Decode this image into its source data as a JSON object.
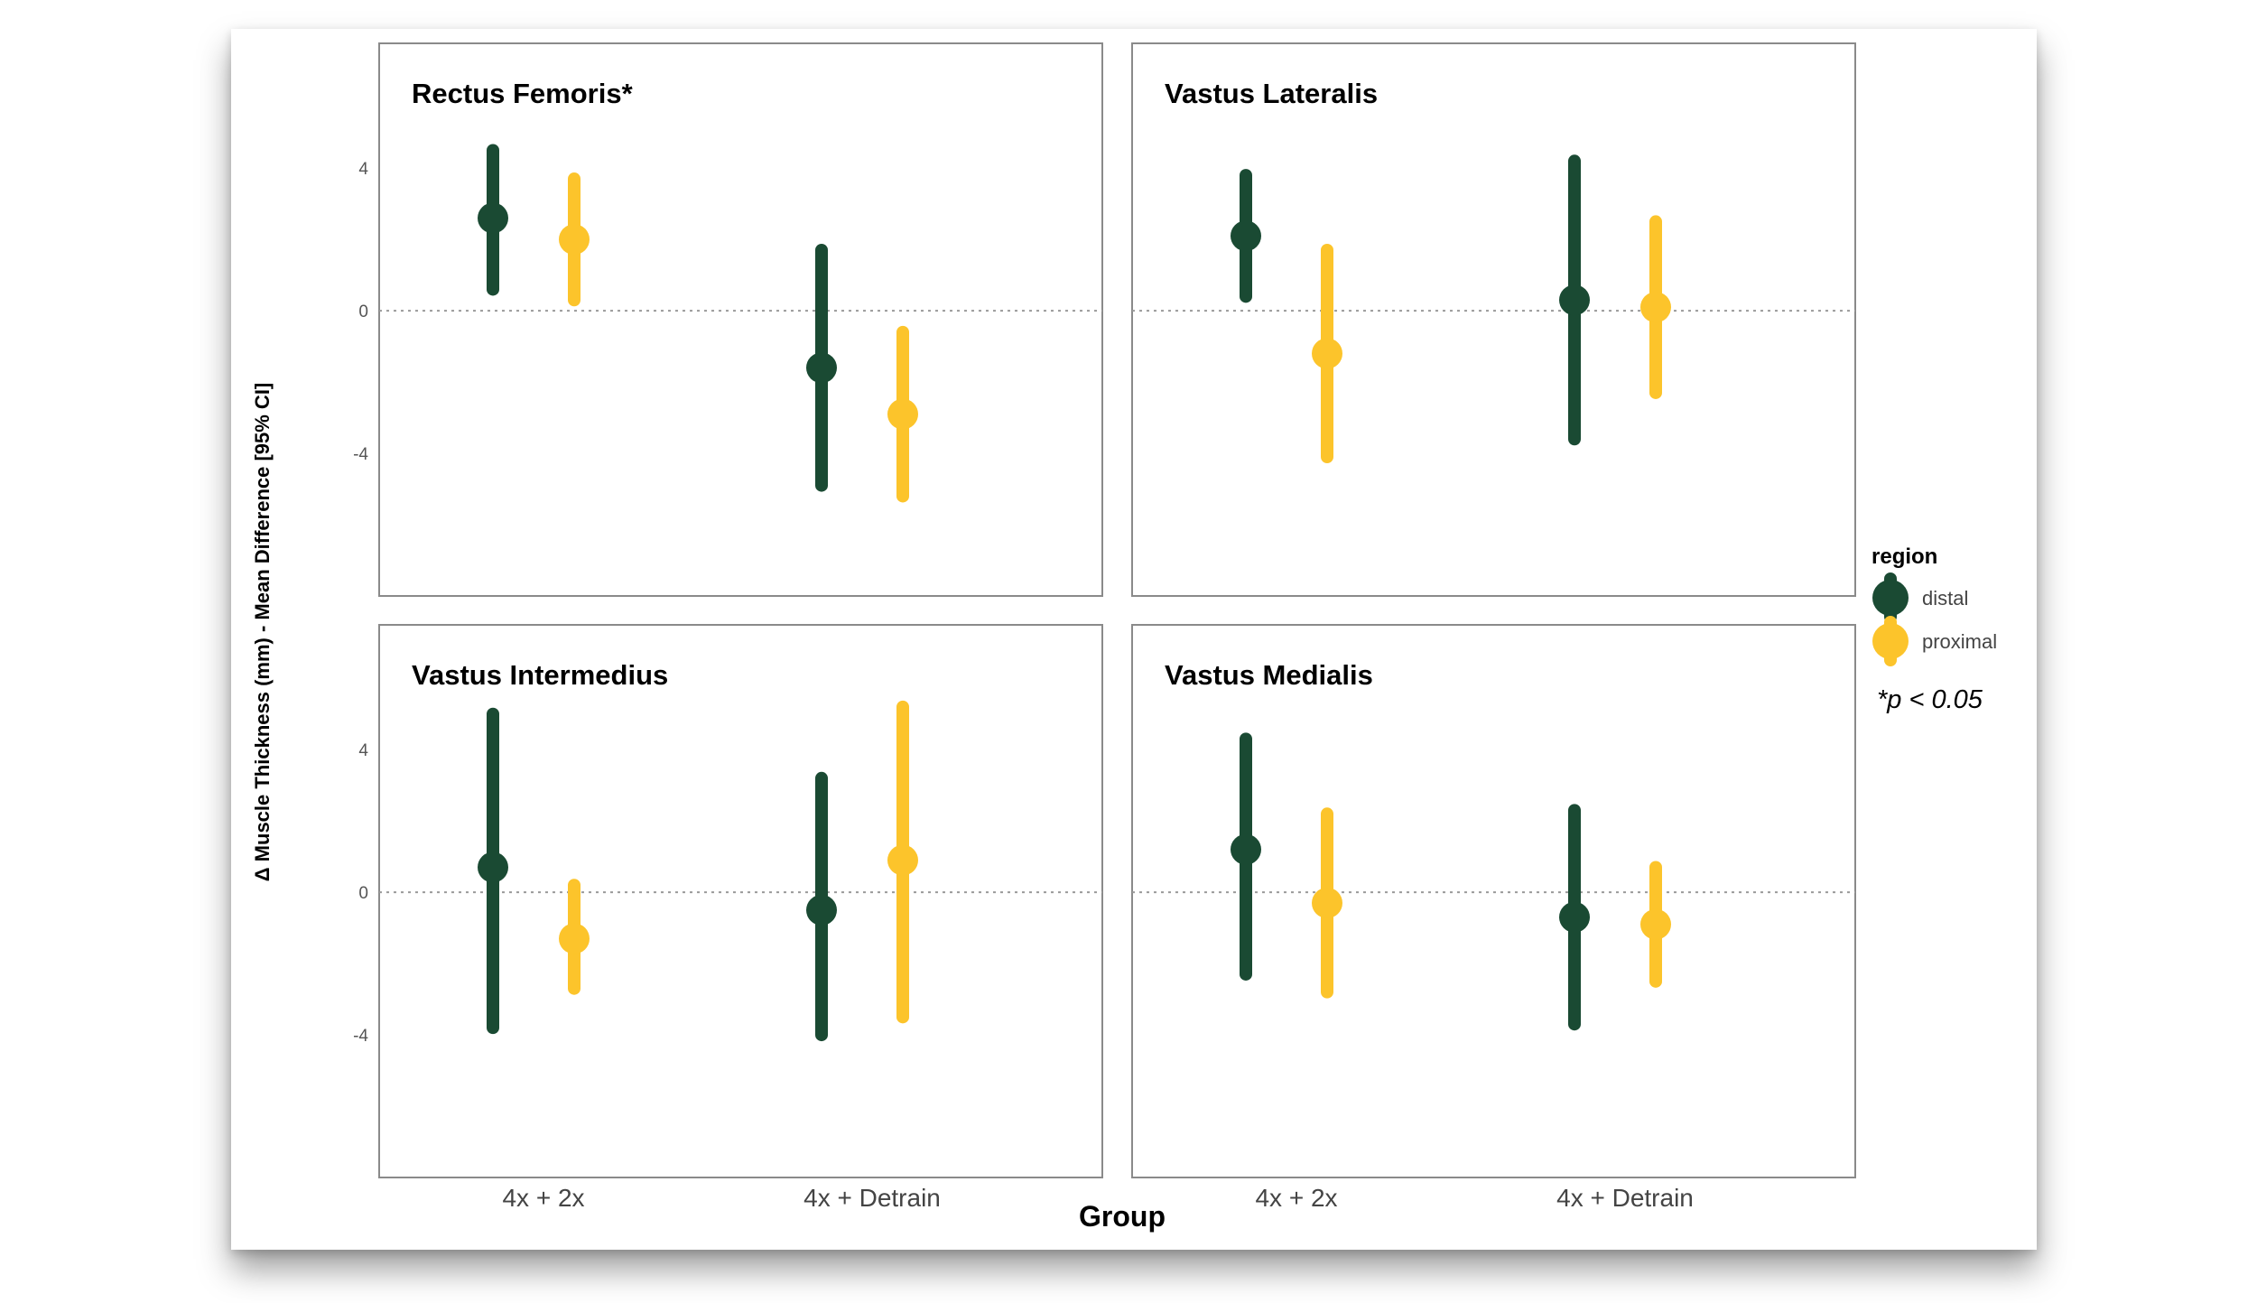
{
  "figure": {
    "ylabel": "Δ Muscle Thickness (mm) - Mean Difference [95% CI]",
    "xlabel": "Group",
    "footnote": "*p < 0.05",
    "colors": {
      "distal": "#1a4a33",
      "proximal": "#fcc42b",
      "refline": "#9a9a9a",
      "frame": "#8a8a8a"
    }
  },
  "legend": {
    "title": "region",
    "items": [
      {
        "label": "distal",
        "color": "#1a4a33"
      },
      {
        "label": "proximal",
        "color": "#fcc42b"
      }
    ]
  },
  "chart_data": [
    {
      "type": "pointrange",
      "title": "Rectus Femoris*",
      "categories": [
        "4x + 2x",
        "4x + Detrain"
      ],
      "ylim": [
        -8,
        7.5
      ],
      "yticks": [
        4,
        0,
        -4
      ],
      "series": [
        {
          "name": "distal",
          "points": [
            {
              "y": 2.6,
              "lo": 0.6,
              "hi": 4.5
            },
            {
              "y": -1.6,
              "lo": -4.9,
              "hi": 1.7
            }
          ]
        },
        {
          "name": "proximal",
          "points": [
            {
              "y": 2.0,
              "lo": 0.3,
              "hi": 3.7
            },
            {
              "y": -2.9,
              "lo": -5.2,
              "hi": -0.6
            }
          ]
        }
      ]
    },
    {
      "type": "pointrange",
      "title": "Vastus Lateralis",
      "categories": [
        "4x + 2x",
        "4x + Detrain"
      ],
      "ylim": [
        -8,
        7.5
      ],
      "yticks": [
        4,
        0,
        -4
      ],
      "series": [
        {
          "name": "distal",
          "points": [
            {
              "y": 2.1,
              "lo": 0.4,
              "hi": 3.8
            },
            {
              "y": 0.3,
              "lo": -3.6,
              "hi": 4.2
            }
          ]
        },
        {
          "name": "proximal",
          "points": [
            {
              "y": -1.2,
              "lo": -4.1,
              "hi": 1.7
            },
            {
              "y": 0.1,
              "lo": -2.3,
              "hi": 2.5
            }
          ]
        }
      ]
    },
    {
      "type": "pointrange",
      "title": "Vastus Intermedius",
      "categories": [
        "4x + 2x",
        "4x + Detrain"
      ],
      "ylim": [
        -8,
        7.5
      ],
      "yticks": [
        4,
        0,
        -4
      ],
      "series": [
        {
          "name": "distal",
          "points": [
            {
              "y": 0.7,
              "lo": -3.8,
              "hi": 5.0
            },
            {
              "y": -0.5,
              "lo": -4.0,
              "hi": 3.2
            }
          ]
        },
        {
          "name": "proximal",
          "points": [
            {
              "y": -1.3,
              "lo": -2.7,
              "hi": 0.2
            },
            {
              "y": 0.9,
              "lo": -3.5,
              "hi": 5.2
            }
          ]
        }
      ]
    },
    {
      "type": "pointrange",
      "title": "Vastus Medialis",
      "categories": [
        "4x + 2x",
        "4x + Detrain"
      ],
      "ylim": [
        -8,
        7.5
      ],
      "yticks": [
        4,
        0,
        -4
      ],
      "series": [
        {
          "name": "distal",
          "points": [
            {
              "y": 1.2,
              "lo": -2.3,
              "hi": 4.3
            },
            {
              "y": -0.7,
              "lo": -3.7,
              "hi": 2.3
            }
          ]
        },
        {
          "name": "proximal",
          "points": [
            {
              "y": -0.3,
              "lo": -2.8,
              "hi": 2.2
            },
            {
              "y": -0.9,
              "lo": -2.5,
              "hi": 0.7
            }
          ]
        }
      ]
    }
  ]
}
